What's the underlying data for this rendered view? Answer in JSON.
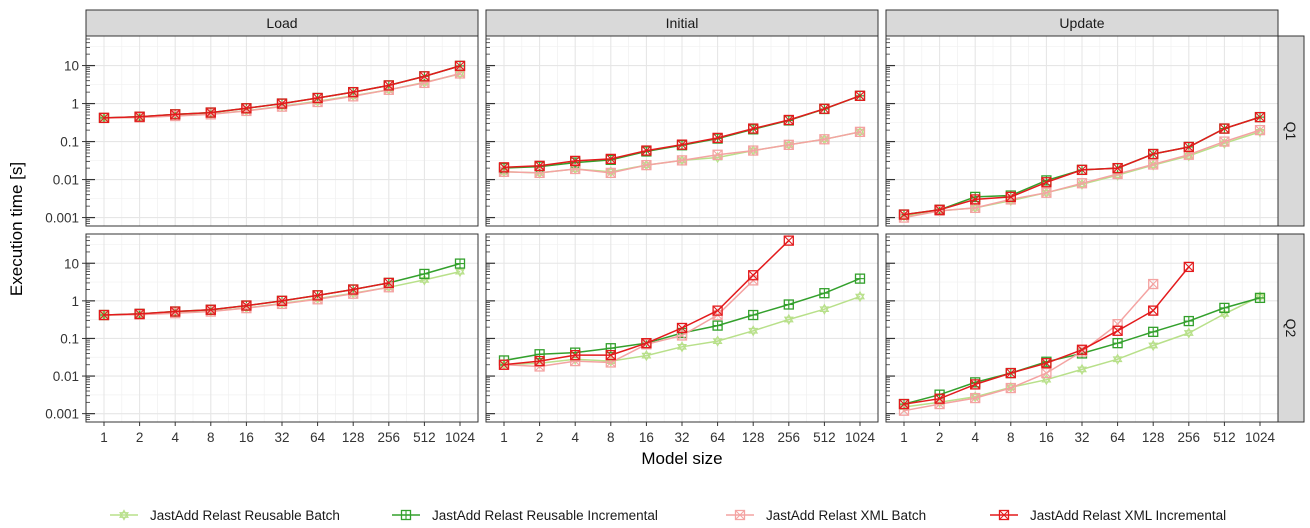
{
  "chart_data": {
    "type": "line",
    "xlabel": "Model size",
    "ylabel": "Execution time [s]",
    "x_scale": "log2",
    "y_scale": "log10",
    "x": [
      1,
      2,
      4,
      8,
      16,
      32,
      64,
      128,
      256,
      512,
      1024
    ],
    "x_tick_labels": [
      "1",
      "2",
      "4",
      "8",
      "16",
      "32",
      "64",
      "128",
      "256",
      "512",
      "1024"
    ],
    "y_tick_labels": [
      "0.001",
      "0.01",
      "0.1",
      "1",
      "10"
    ],
    "ylim": [
      0.0006,
      60
    ],
    "grid": true,
    "legend_position": "bottom",
    "columns": [
      "Load",
      "Initial",
      "Update"
    ],
    "rows": [
      "Q1",
      "Q2"
    ],
    "series_styles": [
      {
        "name": "JastAdd Relast Reusable Batch",
        "color": "#b8e08a",
        "marker": "star"
      },
      {
        "name": "JastAdd Relast Reusable Incremental",
        "color": "#33a02c",
        "marker": "square-plus"
      },
      {
        "name": "JastAdd Relast XML Batch",
        "color": "#f4a3a2",
        "marker": "square-x"
      },
      {
        "name": "JastAdd Relast XML Incremental",
        "color": "#e31a1c",
        "marker": "square-x"
      }
    ],
    "panels": [
      {
        "row": "Q1",
        "col": "Load",
        "series": [
          {
            "name": "JastAdd Relast Reusable Batch",
            "values": [
              0.42,
              0.43,
              0.48,
              0.53,
              0.65,
              0.85,
              1.15,
              1.6,
              2.3,
              3.6,
              6.0
            ]
          },
          {
            "name": "JastAdd Relast Reusable Incremental",
            "values": [
              0.42,
              0.45,
              0.52,
              0.58,
              0.75,
              1.0,
              1.4,
              2.0,
              3.0,
              5.2,
              9.8
            ]
          },
          {
            "name": "JastAdd Relast XML Batch",
            "values": [
              0.42,
              0.43,
              0.47,
              0.52,
              0.64,
              0.83,
              1.1,
              1.55,
              2.3,
              3.5,
              6.2
            ]
          },
          {
            "name": "JastAdd Relast XML Incremental",
            "values": [
              0.42,
              0.45,
              0.52,
              0.58,
              0.75,
              1.0,
              1.4,
              2.0,
              3.0,
              5.2,
              9.8
            ]
          }
        ]
      },
      {
        "row": "Q1",
        "col": "Initial",
        "series": [
          {
            "name": "JastAdd Relast Reusable Batch",
            "values": [
              0.016,
              0.015,
              0.019,
              0.016,
              0.024,
              0.032,
              0.038,
              0.058,
              0.082,
              0.115,
              0.18
            ]
          },
          {
            "name": "JastAdd Relast Reusable Incremental",
            "values": [
              0.02,
              0.022,
              0.028,
              0.033,
              0.055,
              0.08,
              0.12,
              0.21,
              0.36,
              0.72,
              1.6
            ]
          },
          {
            "name": "JastAdd Relast XML Batch",
            "values": [
              0.016,
              0.015,
              0.019,
              0.015,
              0.024,
              0.032,
              0.045,
              0.058,
              0.082,
              0.115,
              0.18
            ]
          },
          {
            "name": "JastAdd Relast XML Incremental",
            "values": [
              0.021,
              0.023,
              0.031,
              0.035,
              0.058,
              0.083,
              0.125,
              0.22,
              0.37,
              0.73,
              1.6
            ]
          }
        ]
      },
      {
        "row": "Q1",
        "col": "Update",
        "series": [
          {
            "name": "JastAdd Relast Reusable Batch",
            "values": [
              0.0011,
              0.0015,
              0.0018,
              0.0028,
              0.0045,
              0.0075,
              0.013,
              0.024,
              0.042,
              0.09,
              0.18
            ]
          },
          {
            "name": "JastAdd Relast Reusable Incremental",
            "values": [
              0.0012,
              0.0016,
              0.0035,
              0.0038,
              0.0095,
              0.018,
              0.02,
              0.047,
              0.072,
              0.22,
              0.44
            ]
          },
          {
            "name": "JastAdd Relast XML Batch",
            "values": [
              0.001,
              0.0015,
              0.0018,
              0.003,
              0.0045,
              0.008,
              0.014,
              0.025,
              0.045,
              0.1,
              0.2
            ]
          },
          {
            "name": "JastAdd Relast XML Incremental",
            "values": [
              0.0012,
              0.0016,
              0.003,
              0.0035,
              0.0085,
              0.018,
              0.02,
              0.047,
              0.072,
              0.22,
              0.44
            ]
          }
        ]
      },
      {
        "row": "Q2",
        "col": "Load",
        "series": [
          {
            "name": "JastAdd Relast Reusable Batch",
            "values": [
              0.42,
              0.43,
              0.48,
              0.53,
              0.65,
              0.85,
              1.15,
              1.6,
              2.3,
              3.6,
              6.0
            ]
          },
          {
            "name": "JastAdd Relast Reusable Incremental",
            "values": [
              0.42,
              0.45,
              0.52,
              0.58,
              0.75,
              1.0,
              1.4,
              2.0,
              3.0,
              5.2,
              9.8
            ]
          },
          {
            "name": "JastAdd Relast XML Batch",
            "values": [
              0.42,
              0.43,
              0.47,
              0.52,
              0.64,
              0.83,
              1.1,
              1.55,
              2.3,
              null,
              null
            ]
          },
          {
            "name": "JastAdd Relast XML Incremental",
            "values": [
              0.42,
              0.45,
              0.52,
              0.58,
              0.75,
              1.0,
              1.4,
              2.0,
              3.0,
              null,
              null
            ]
          }
        ]
      },
      {
        "row": "Q2",
        "col": "Initial",
        "series": [
          {
            "name": "JastAdd Relast Reusable Batch",
            "values": [
              0.02,
              0.022,
              0.028,
              0.025,
              0.035,
              0.06,
              0.085,
              0.16,
              0.32,
              0.6,
              1.3
            ]
          },
          {
            "name": "JastAdd Relast Reusable Incremental",
            "values": [
              0.026,
              0.038,
              0.042,
              0.055,
              0.075,
              0.14,
              0.22,
              0.42,
              0.8,
              1.6,
              3.9
            ]
          },
          {
            "name": "JastAdd Relast XML Batch",
            "values": [
              0.02,
              0.018,
              0.025,
              0.023,
              0.07,
              0.12,
              0.42,
              3.5,
              null,
              null,
              null
            ]
          },
          {
            "name": "JastAdd Relast XML Incremental",
            "values": [
              0.02,
              0.025,
              0.036,
              0.036,
              0.075,
              0.19,
              0.55,
              4.8,
              40,
              null,
              null
            ]
          }
        ]
      },
      {
        "row": "Q2",
        "col": "Update",
        "series": [
          {
            "name": "JastAdd Relast Reusable Batch",
            "values": [
              0.0015,
              0.002,
              0.0028,
              0.005,
              0.008,
              0.015,
              0.028,
              0.065,
              0.14,
              0.45,
              1.3
            ]
          },
          {
            "name": "JastAdd Relast Reusable Incremental",
            "values": [
              0.0018,
              0.0032,
              0.0068,
              0.012,
              0.024,
              0.04,
              0.075,
              0.15,
              0.29,
              0.65,
              1.2
            ]
          },
          {
            "name": "JastAdd Relast XML Batch",
            "values": [
              0.0012,
              0.0018,
              0.0026,
              0.0048,
              0.012,
              0.045,
              0.24,
              2.8,
              null,
              null,
              null
            ]
          },
          {
            "name": "JastAdd Relast XML Incremental",
            "values": [
              0.0018,
              0.0025,
              0.006,
              0.012,
              0.022,
              0.05,
              0.16,
              0.55,
              8.0,
              null,
              null
            ]
          }
        ]
      }
    ]
  }
}
